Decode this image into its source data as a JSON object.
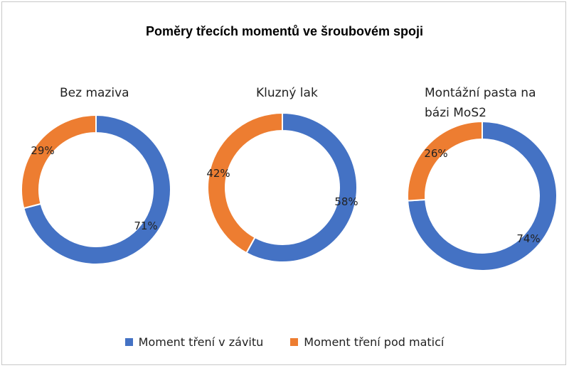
{
  "chart_data": {
    "type": "donut",
    "title": "Poměry třecích momentů ve šroubovém spoji",
    "series_names": [
      "Moment tření v závitu",
      "Moment tření pod maticí"
    ],
    "colors": [
      "#4472C4",
      "#ED7D31"
    ],
    "legend_position": "bottom",
    "charts": [
      {
        "title": "Bez maziva",
        "values": [
          71,
          29
        ],
        "labels": [
          "71%",
          "29%"
        ]
      },
      {
        "title": "Kluzný lak",
        "values": [
          58,
          42
        ],
        "labels": [
          "58%",
          "42%"
        ]
      },
      {
        "title": "Montážní pasta na\nbázi MoS2",
        "values": [
          74,
          26
        ],
        "labels": [
          "74%",
          "26%"
        ]
      }
    ]
  }
}
